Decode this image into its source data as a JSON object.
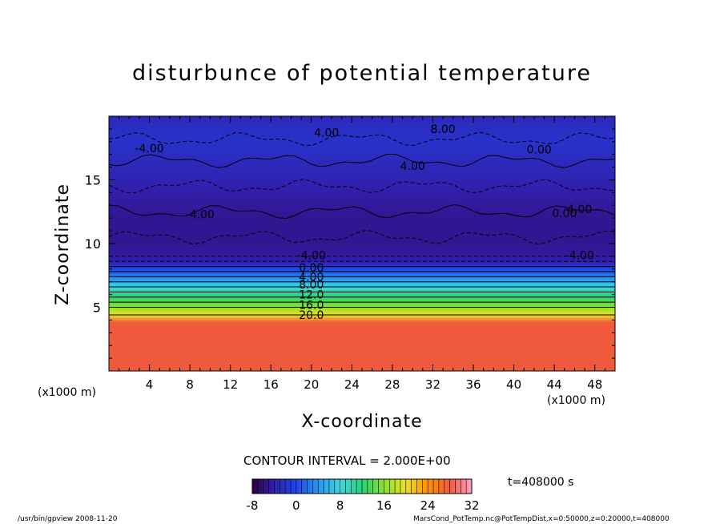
{
  "chart_data": {
    "type": "heatmap",
    "title": "disturbunce of potential temperature",
    "xlabel": "X-coordinate",
    "ylabel": "Z-coordinate",
    "x_unit_label": "(x1000 m)",
    "xlim": [
      0,
      50
    ],
    "ylim": [
      0,
      20
    ],
    "x_ticks": [
      "4",
      "8",
      "12",
      "16",
      "20",
      "24",
      "28",
      "32",
      "36",
      "40",
      "44",
      "48"
    ],
    "y_ticks": [
      "5",
      "10",
      "15"
    ],
    "contour_interval_text": "CONTOUR INTERVAL = 2.000E+00",
    "colorbar": {
      "min": -8,
      "max": 32,
      "ticks": [
        "-8",
        "0",
        "8",
        "16",
        "24",
        "32"
      ]
    },
    "time_label": "t=408000 s",
    "vertical_profile": [
      {
        "z": 0.5,
        "value": 28
      },
      {
        "z": 2,
        "value": 28
      },
      {
        "z": 3.8,
        "value": 28
      },
      {
        "z": 4.4,
        "value": 20
      },
      {
        "z": 5,
        "value": 16
      },
      {
        "z": 5.8,
        "value": 12
      },
      {
        "z": 6.6,
        "value": 8
      },
      {
        "z": 7.2,
        "value": 4
      },
      {
        "z": 8,
        "value": 0
      },
      {
        "z": 8.6,
        "value": -4
      },
      {
        "z": 10,
        "value": -5
      },
      {
        "z": 12,
        "value": -5
      },
      {
        "z": 14,
        "value": -4
      },
      {
        "z": 16,
        "value": -3
      },
      {
        "z": 18,
        "value": -2
      },
      {
        "z": 20,
        "value": -3
      }
    ],
    "contour_labels": [
      {
        "text": "20.0",
        "x": 20,
        "z": 4.4
      },
      {
        "text": "16.0",
        "x": 20,
        "z": 5.2
      },
      {
        "text": "12.0",
        "x": 20,
        "z": 6.0
      },
      {
        "text": "8.00",
        "x": 20,
        "z": 6.8
      },
      {
        "text": "4.00",
        "x": 20,
        "z": 7.4
      },
      {
        "text": "0.00",
        "x": 20,
        "z": 8.1
      },
      {
        "text": "-4.00",
        "x": 20,
        "z": 9.1
      },
      {
        "text": "-4.00",
        "x": 46.5,
        "z": 9.1
      },
      {
        "text": "-4.00",
        "x": 9,
        "z": 12.3
      },
      {
        "text": "0.00",
        "x": 45,
        "z": 12.4
      },
      {
        "text": "4.00",
        "x": 46.5,
        "z": 12.7
      },
      {
        "text": "-4.00",
        "x": 4,
        "z": 17.5
      },
      {
        "text": "4.00",
        "x": 30,
        "z": 16.1
      },
      {
        "text": "0.00",
        "x": 42.5,
        "z": 17.4
      },
      {
        "text": "4.00",
        "x": 21.5,
        "z": 18.7
      },
      {
        "text": "8.00",
        "x": 33,
        "z": 19.0
      }
    ]
  },
  "footer": {
    "left": "/usr/bin/gpview  2008-11-20",
    "right": "MarsCond_PotTemp.nc@PotTempDist,x=0:50000,z=0:20000,t=408000"
  }
}
